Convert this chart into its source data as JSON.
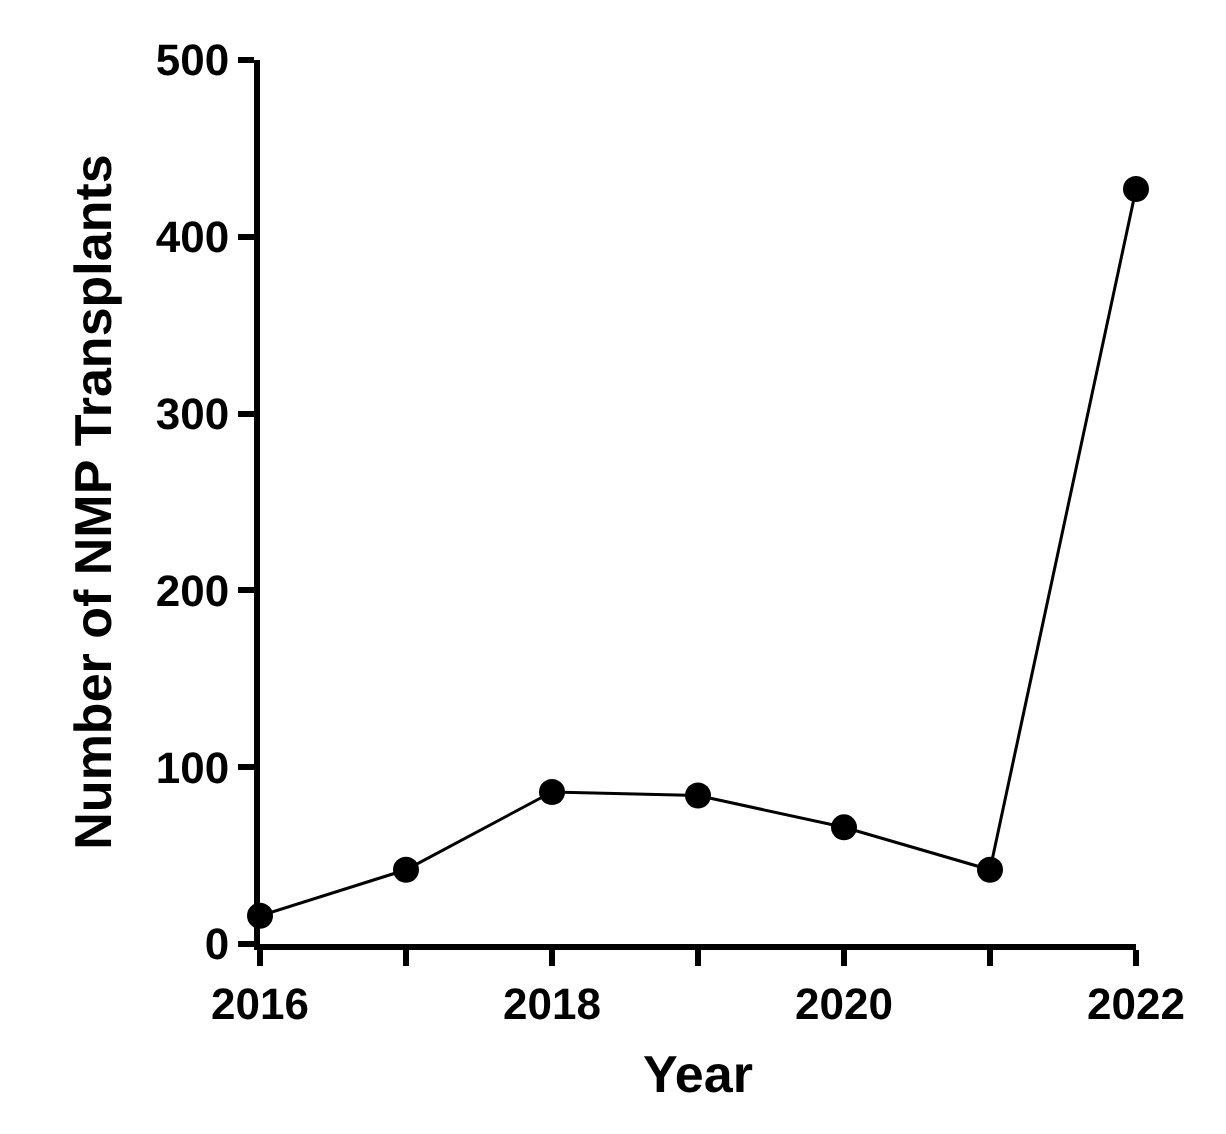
{
  "chart_data": {
    "type": "line",
    "xlabel": "Year",
    "ylabel": "Number of NMP Transplants",
    "x": [
      2016,
      2017,
      2018,
      2019,
      2020,
      2021,
      2022
    ],
    "series": [
      {
        "color": "#000000",
        "values": [
          16,
          42,
          86,
          84,
          66,
          42,
          427
        ]
      }
    ],
    "xlim": [
      2016,
      2022
    ],
    "ylim": [
      0,
      500
    ],
    "xticks": [
      2016,
      {
        "value": 2017,
        "label": null
      },
      2018,
      {
        "value": 2019,
        "label": null
      },
      2020,
      {
        "value": 2021,
        "label": null
      },
      2022
    ],
    "yticks": [
      0,
      100,
      200,
      300,
      400,
      500
    ],
    "marker": "circle",
    "line_style": "solid"
  }
}
